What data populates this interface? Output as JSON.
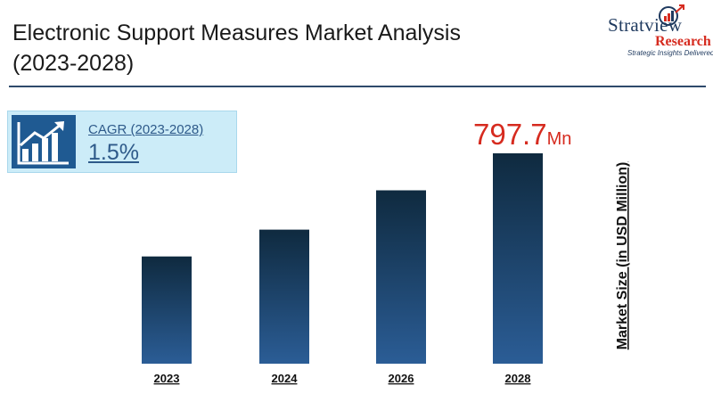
{
  "header": {
    "title_line1": "Electronic Support Measures Market Analysis",
    "title_line2": "(2023-2028)"
  },
  "logo": {
    "wordmark": "Stratview",
    "registered": "®",
    "subword": "Research",
    "tagline": "Strategic Insights Delivered"
  },
  "cagr": {
    "label": "CAGR (2023-2028)",
    "value": "1.5%",
    "icon": "growth-chart-icon"
  },
  "colors": {
    "bar_top": "#0f2a3f",
    "bar_bottom": "#2b5d96",
    "highlight_value": "#d62b1f",
    "divider": "#2e4a6b"
  },
  "chart_data": {
    "type": "bar",
    "categories": [
      "2023",
      "2024",
      "2026",
      "2028"
    ],
    "values": [
      740,
      755,
      777,
      797.7
    ],
    "ylabel": "Market Size (in USD Million)",
    "ylim": [
      680,
      800
    ],
    "highlight": {
      "category": "2028",
      "value_label": "797.7",
      "unit_label": "Mn"
    },
    "grid": false
  }
}
